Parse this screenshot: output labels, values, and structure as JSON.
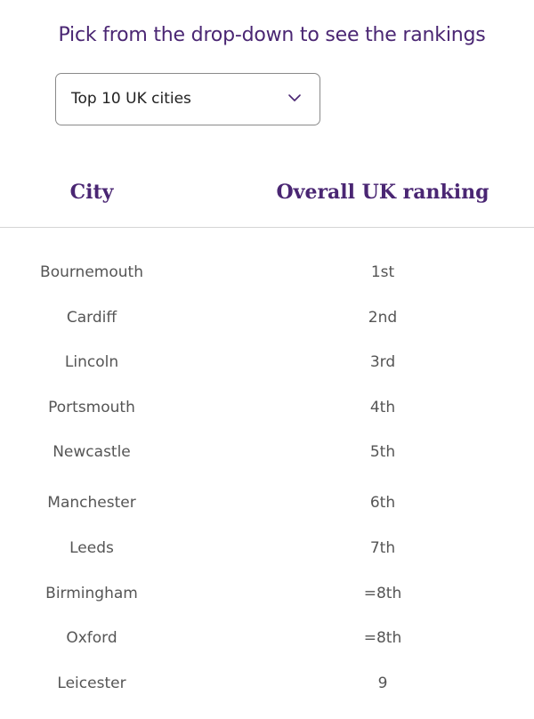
{
  "instruction": "Pick from the drop-down to see the rankings",
  "dropdown": {
    "selected": "Top 10 UK cities",
    "icon": "chevron-down-icon"
  },
  "table": {
    "headers": {
      "city": "City",
      "ranking": "Overall UK ranking"
    },
    "rows": [
      {
        "city": "Bournemouth",
        "ranking": "1st"
      },
      {
        "city": "Cardiff",
        "ranking": "2nd"
      },
      {
        "city": "Lincoln",
        "ranking": "3rd"
      },
      {
        "city": "Portsmouth",
        "ranking": "4th"
      },
      {
        "city": "Newcastle",
        "ranking": "5th"
      },
      {
        "city": "Manchester",
        "ranking": "6th"
      },
      {
        "city": "Leeds",
        "ranking": "7th"
      },
      {
        "city": "Birmingham",
        "ranking": "=8th"
      },
      {
        "city": "Oxford",
        "ranking": "=8th"
      },
      {
        "city": "Leicester",
        "ranking": "9"
      }
    ]
  },
  "colors": {
    "brand_purple": "#4a2673",
    "body_text": "#555555",
    "divider": "#d5d5d5"
  }
}
